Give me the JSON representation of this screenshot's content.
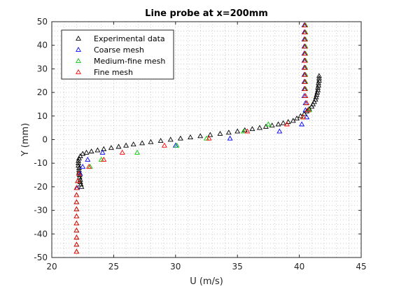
{
  "chart_data": {
    "type": "scatter",
    "title": "Line probe at x=200mm",
    "xlabel": "U (m/s)",
    "ylabel": "Y (mm)",
    "xlim": [
      20,
      45
    ],
    "ylim": [
      -50,
      50
    ],
    "xticks": [
      "20",
      "25",
      "30",
      "35",
      "40",
      "45"
    ],
    "yticks": [
      "-50",
      "-40",
      "-30",
      "-20",
      "-10",
      "0",
      "10",
      "20",
      "30",
      "40",
      "50"
    ],
    "grid": "minor-dotted",
    "legend_position": "top-left",
    "marker": "triangle-open",
    "series": [
      {
        "name": "Experimental data",
        "color": "#000000",
        "points": [
          [
            22.4,
            -20
          ],
          [
            22.35,
            -19
          ],
          [
            22.3,
            -18
          ],
          [
            22.3,
            -17
          ],
          [
            22.25,
            -16
          ],
          [
            22.25,
            -15
          ],
          [
            22.2,
            -14
          ],
          [
            22.2,
            -13
          ],
          [
            22.2,
            -12
          ],
          [
            22.15,
            -11
          ],
          [
            22.15,
            -10
          ],
          [
            22.15,
            -9
          ],
          [
            22.2,
            -8
          ],
          [
            22.3,
            -7
          ],
          [
            22.5,
            -6
          ],
          [
            22.8,
            -5.5
          ],
          [
            23.2,
            -5
          ],
          [
            23.7,
            -4.5
          ],
          [
            24.2,
            -4
          ],
          [
            24.8,
            -3.5
          ],
          [
            25.4,
            -3
          ],
          [
            26.0,
            -2.5
          ],
          [
            26.6,
            -2
          ],
          [
            27.3,
            -1.5
          ],
          [
            28.0,
            -1
          ],
          [
            28.8,
            -0.5
          ],
          [
            29.6,
            0
          ],
          [
            30.4,
            0.5
          ],
          [
            31.2,
            1
          ],
          [
            32.0,
            1.5
          ],
          [
            32.8,
            2
          ],
          [
            33.6,
            2.5
          ],
          [
            34.3,
            3
          ],
          [
            35.0,
            3.5
          ],
          [
            35.6,
            4
          ],
          [
            36.2,
            4.5
          ],
          [
            36.8,
            5
          ],
          [
            37.3,
            5.5
          ],
          [
            37.8,
            6
          ],
          [
            38.3,
            6.5
          ],
          [
            38.7,
            7
          ],
          [
            39.1,
            7.5
          ],
          [
            39.5,
            8
          ],
          [
            39.8,
            9
          ],
          [
            40.1,
            10
          ],
          [
            40.4,
            11
          ],
          [
            40.6,
            12
          ],
          [
            40.8,
            13
          ],
          [
            41.0,
            14
          ],
          [
            41.1,
            15
          ],
          [
            41.2,
            16
          ],
          [
            41.3,
            17
          ],
          [
            41.35,
            18
          ],
          [
            41.4,
            19
          ],
          [
            41.45,
            20
          ],
          [
            41.5,
            21
          ],
          [
            41.5,
            22
          ],
          [
            41.55,
            23
          ],
          [
            41.55,
            24
          ],
          [
            41.6,
            25
          ],
          [
            41.6,
            26
          ],
          [
            41.6,
            27
          ]
        ]
      },
      {
        "name": "Coarse mesh",
        "color": "#0000ff",
        "points": [
          [
            22.0,
            -47.5
          ],
          [
            22.0,
            -44.5
          ],
          [
            22.0,
            -41.5
          ],
          [
            22.0,
            -38.5
          ],
          [
            22.0,
            -35.5
          ],
          [
            22.0,
            -32.5
          ],
          [
            22.0,
            -29.5
          ],
          [
            22.0,
            -26.5
          ],
          [
            22.0,
            -23.5
          ],
          [
            22.05,
            -20.5
          ],
          [
            22.1,
            -17.5
          ],
          [
            22.3,
            -14.5
          ],
          [
            22.5,
            -11.5
          ],
          [
            22.9,
            -8.5
          ],
          [
            24.1,
            -5.5
          ],
          [
            30.0,
            -2.5
          ],
          [
            34.4,
            0.5
          ],
          [
            38.4,
            3.5
          ],
          [
            40.2,
            6.5
          ],
          [
            40.6,
            9.5
          ],
          [
            40.5,
            12.5
          ],
          [
            40.5,
            15.5
          ],
          [
            40.4,
            18.5
          ],
          [
            40.4,
            21.5
          ],
          [
            40.4,
            24.5
          ],
          [
            40.4,
            27.5
          ],
          [
            40.4,
            30.5
          ],
          [
            40.4,
            33.5
          ],
          [
            40.4,
            36.5
          ],
          [
            40.4,
            39.5
          ],
          [
            40.4,
            42.5
          ],
          [
            40.4,
            45.5
          ],
          [
            40.4,
            48.5
          ]
        ]
      },
      {
        "name": "Medium-fine mesh",
        "color": "#00cc00",
        "points": [
          [
            22.0,
            -47.5
          ],
          [
            22.0,
            -44.5
          ],
          [
            22.0,
            -41.5
          ],
          [
            22.0,
            -38.5
          ],
          [
            22.0,
            -35.5
          ],
          [
            22.0,
            -32.5
          ],
          [
            22.0,
            -29.5
          ],
          [
            22.0,
            -26.5
          ],
          [
            22.0,
            -23.5
          ],
          [
            22.0,
            -20.5
          ],
          [
            22.1,
            -17.5
          ],
          [
            22.2,
            -14.5
          ],
          [
            23.1,
            -11.5
          ],
          [
            24.0,
            -8.5
          ],
          [
            26.9,
            -5.5
          ],
          [
            30.1,
            -2.5
          ],
          [
            32.5,
            0.5
          ],
          [
            35.5,
            3.5
          ],
          [
            37.5,
            6.5
          ],
          [
            40.3,
            9.5
          ],
          [
            40.8,
            12.5
          ],
          [
            40.6,
            15.5
          ],
          [
            40.5,
            18.5
          ],
          [
            40.5,
            21.5
          ],
          [
            40.5,
            24.5
          ],
          [
            40.5,
            27.5
          ],
          [
            40.5,
            30.5
          ],
          [
            40.5,
            33.5
          ],
          [
            40.5,
            36.5
          ],
          [
            40.5,
            39.5
          ],
          [
            40.5,
            42.5
          ],
          [
            40.5,
            45.5
          ],
          [
            40.5,
            48.5
          ]
        ]
      },
      {
        "name": "Fine mesh",
        "color": "#ff0000",
        "points": [
          [
            22.0,
            -47.5
          ],
          [
            22.0,
            -44.5
          ],
          [
            22.0,
            -41.5
          ],
          [
            22.0,
            -38.5
          ],
          [
            22.0,
            -35.5
          ],
          [
            22.0,
            -32.5
          ],
          [
            22.0,
            -29.5
          ],
          [
            22.0,
            -26.5
          ],
          [
            22.0,
            -23.5
          ],
          [
            22.0,
            -20.5
          ],
          [
            22.1,
            -17.5
          ],
          [
            22.2,
            -14.5
          ],
          [
            23.0,
            -11.5
          ],
          [
            24.2,
            -8.5
          ],
          [
            25.7,
            -5.5
          ],
          [
            29.1,
            -2.5
          ],
          [
            32.7,
            0.5
          ],
          [
            35.8,
            3.5
          ],
          [
            39.0,
            6.5
          ],
          [
            40.3,
            9.5
          ],
          [
            40.7,
            12.5
          ],
          [
            40.6,
            15.5
          ],
          [
            40.5,
            18.5
          ],
          [
            40.45,
            21.5
          ],
          [
            40.45,
            24.5
          ],
          [
            40.45,
            27.5
          ],
          [
            40.45,
            30.5
          ],
          [
            40.45,
            33.5
          ],
          [
            40.45,
            36.5
          ],
          [
            40.45,
            39.5
          ],
          [
            40.45,
            42.5
          ],
          [
            40.45,
            45.5
          ],
          [
            40.45,
            48.5
          ]
        ]
      }
    ]
  }
}
